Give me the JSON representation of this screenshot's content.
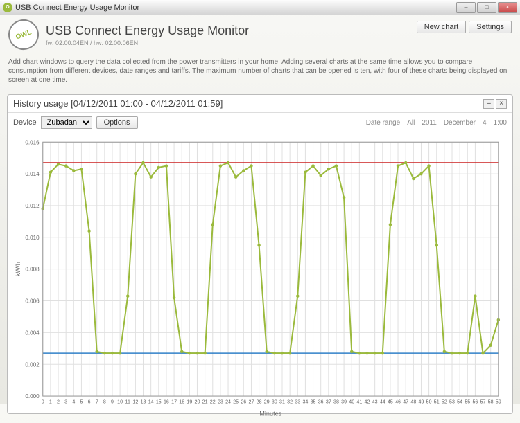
{
  "window": {
    "title": "USB Connect Energy Usage Monitor"
  },
  "header": {
    "logo": "OWL",
    "title": "USB Connect Energy Usage Monitor",
    "firmware": "fw: 02.00.04EN / hw: 02.00.06EN",
    "new_chart_btn": "New chart",
    "settings_btn": "Settings"
  },
  "description": "Add chart windows to query the data collected from the power transmitters in your home. Adding several charts at the same time allows you to compare consumption from different devices, date ranges and tariffs. The maximum number of charts that can be opened is ten, with four of these charts being displayed on screen at one time.",
  "panel": {
    "title": "History usage [04/12/2011 01:00 - 04/12/2011 01:59]",
    "device_label": "Device",
    "device_value": "Zubadan",
    "options_btn": "Options",
    "daterange_label": "Date range",
    "crumbs": [
      "All",
      "2011",
      "December",
      "4",
      "1:00"
    ]
  },
  "chart": {
    "type": "line",
    "ylabel": "kW/h",
    "xlabel": "Minutes",
    "ylim": [
      0,
      0.016
    ],
    "yticks": [
      0.0,
      0.002,
      0.004,
      0.006,
      0.008,
      0.01,
      0.012,
      0.014,
      0.016
    ],
    "xticks": [
      0,
      1,
      2,
      3,
      4,
      5,
      6,
      7,
      8,
      9,
      10,
      11,
      12,
      13,
      14,
      15,
      16,
      17,
      18,
      19,
      20,
      21,
      22,
      23,
      24,
      25,
      26,
      27,
      28,
      29,
      30,
      31,
      32,
      33,
      34,
      35,
      36,
      37,
      38,
      39,
      40,
      41,
      42,
      43,
      44,
      45,
      46,
      47,
      48,
      49,
      50,
      51,
      52,
      53,
      54,
      55,
      56,
      57,
      58,
      59
    ],
    "line_color": "#9bba3c",
    "line_width": 2,
    "marker_size": 2.2,
    "threshold_high": {
      "value": 0.0147,
      "color": "#cc2020"
    },
    "threshold_low": {
      "value": 0.0027,
      "color": "#3080c8"
    },
    "grid_color": "#e0e0e0",
    "background_color": "#ffffff",
    "values": [
      0.0118,
      0.0141,
      0.0146,
      0.0145,
      0.0142,
      0.0143,
      0.0104,
      0.0028,
      0.0027,
      0.0027,
      0.0027,
      0.0063,
      0.014,
      0.0147,
      0.0138,
      0.0144,
      0.0145,
      0.0062,
      0.0028,
      0.0027,
      0.0027,
      0.0027,
      0.0108,
      0.0145,
      0.0147,
      0.0138,
      0.0142,
      0.0145,
      0.0095,
      0.0028,
      0.0027,
      0.0027,
      0.0027,
      0.0063,
      0.0141,
      0.0145,
      0.0139,
      0.0143,
      0.0145,
      0.0125,
      0.0028,
      0.0027,
      0.0027,
      0.0027,
      0.0027,
      0.0108,
      0.0145,
      0.0147,
      0.0137,
      0.014,
      0.0145,
      0.0095,
      0.0028,
      0.0027,
      0.0027,
      0.0027,
      0.0063,
      0.0027,
      0.0032,
      0.0048
    ]
  }
}
